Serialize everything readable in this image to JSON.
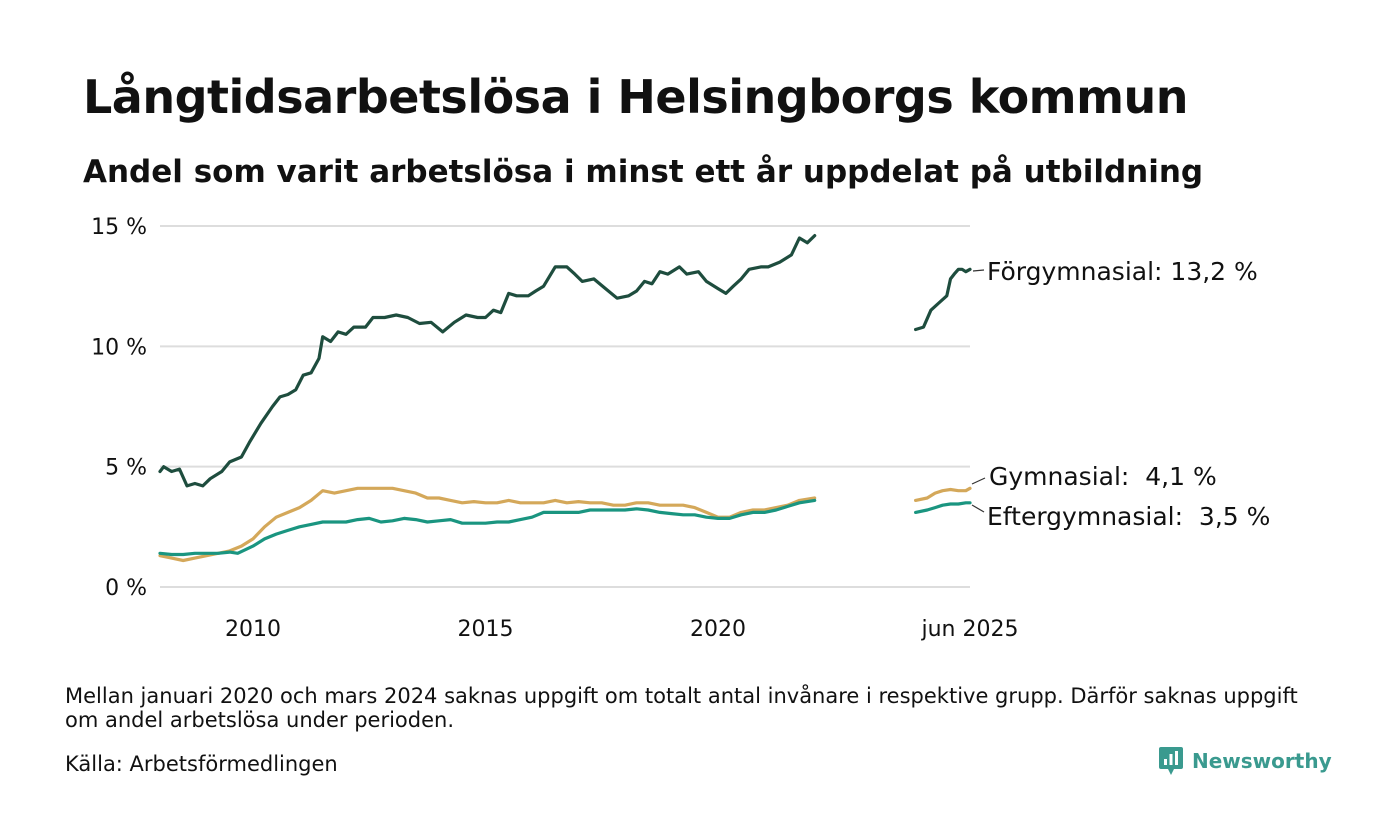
{
  "title": "Långtidsarbetslösa i Helsingborgs kommun",
  "subtitle": "Andel som varit arbetslösa i minst ett år uppdelat på utbildning",
  "footnote": "Mellan januari 2020 och mars 2024 saknas uppgift om totalt antal invånare i respektive grupp. Därför saknas uppgift om andel arbetslösa under perioden.",
  "source": "Källa: Arbetsförmedlingen",
  "brand": "Newsworthy",
  "brand_icon": "newsworthy-logo-icon",
  "colors": {
    "forgymnasial": "#1e4d3e",
    "gymnasial": "#d4a85a",
    "eftergymnasial": "#1a9580",
    "grid": "#dddddd",
    "brand": "#3a9a8f"
  },
  "chart_data": {
    "type": "line",
    "title": "Långtidsarbetslösa i Helsingborgs kommun",
    "subtitle": "Andel som varit arbetslösa i minst ett år uppdelat på utbildning",
    "y_unit": "%",
    "ylim": [
      0,
      15
    ],
    "y_ticks": [
      0,
      5,
      10,
      15
    ],
    "y_tick_labels": [
      "0 %",
      "5 %",
      "10 %",
      "15 %"
    ],
    "x_ticks": [
      2010,
      2015,
      2020,
      2025.42
    ],
    "x_tick_labels": [
      "2010",
      "2015",
      "2020",
      "jun 2025"
    ],
    "grid": true,
    "legend": "end-of-line labels, right",
    "series": [
      {
        "name": "Förgymnasial",
        "label": "Förgymnasial: 13,2 %",
        "color": "#1e4d3e",
        "segments": [
          [
            [
              2008.0,
              4.8
            ],
            [
              2008.08,
              5.0
            ],
            [
              2008.25,
              4.8
            ],
            [
              2008.42,
              4.9
            ],
            [
              2008.58,
              4.2
            ],
            [
              2008.75,
              4.3
            ],
            [
              2008.92,
              4.2
            ],
            [
              2009.08,
              4.5
            ],
            [
              2009.33,
              4.8
            ],
            [
              2009.5,
              5.2
            ],
            [
              2009.75,
              5.4
            ],
            [
              2009.92,
              6.0
            ],
            [
              2010.17,
              6.8
            ],
            [
              2010.42,
              7.5
            ],
            [
              2010.58,
              7.9
            ],
            [
              2010.75,
              8.0
            ],
            [
              2010.92,
              8.2
            ],
            [
              2011.08,
              8.8
            ],
            [
              2011.25,
              8.9
            ],
            [
              2011.42,
              9.5
            ],
            [
              2011.5,
              10.4
            ],
            [
              2011.67,
              10.2
            ],
            [
              2011.83,
              10.6
            ],
            [
              2012.0,
              10.5
            ],
            [
              2012.17,
              10.8
            ],
            [
              2012.42,
              10.8
            ],
            [
              2012.58,
              11.2
            ],
            [
              2012.83,
              11.2
            ],
            [
              2013.08,
              11.3
            ],
            [
              2013.33,
              11.2
            ],
            [
              2013.58,
              10.95
            ],
            [
              2013.83,
              11.0
            ],
            [
              2014.08,
              10.6
            ],
            [
              2014.33,
              11.0
            ],
            [
              2014.58,
              11.3
            ],
            [
              2014.83,
              11.2
            ],
            [
              2015.0,
              11.2
            ],
            [
              2015.17,
              11.5
            ],
            [
              2015.33,
              11.4
            ],
            [
              2015.5,
              12.2
            ],
            [
              2015.67,
              12.1
            ],
            [
              2015.92,
              12.1
            ],
            [
              2016.08,
              12.3
            ],
            [
              2016.25,
              12.5
            ],
            [
              2016.5,
              13.3
            ],
            [
              2016.75,
              13.3
            ],
            [
              2016.92,
              13.0
            ],
            [
              2017.08,
              12.7
            ],
            [
              2017.33,
              12.8
            ],
            [
              2017.58,
              12.4
            ],
            [
              2017.83,
              12.0
            ],
            [
              2018.08,
              12.1
            ],
            [
              2018.25,
              12.3
            ],
            [
              2018.42,
              12.7
            ],
            [
              2018.58,
              12.6
            ],
            [
              2018.75,
              13.1
            ],
            [
              2018.92,
              13.0
            ],
            [
              2019.17,
              13.3
            ],
            [
              2019.33,
              13.0
            ],
            [
              2019.58,
              13.1
            ],
            [
              2019.75,
              12.7
            ],
            [
              2020.0,
              12.4
            ],
            [
              2020.17,
              12.2
            ],
            [
              2020.33,
              12.5
            ],
            [
              2020.5,
              12.8
            ],
            [
              2020.67,
              13.2
            ],
            [
              2020.92,
              13.3
            ],
            [
              2021.08,
              13.3
            ],
            [
              2021.33,
              13.5
            ],
            [
              2021.58,
              13.8
            ],
            [
              2021.75,
              14.5
            ],
            [
              2021.92,
              14.3
            ],
            [
              2022.08,
              14.6
            ]
          ],
          [
            [
              2024.25,
              10.7
            ],
            [
              2024.42,
              10.8
            ],
            [
              2024.58,
              11.5
            ],
            [
              2024.75,
              11.8
            ],
            [
              2024.92,
              12.1
            ],
            [
              2025.0,
              12.8
            ],
            [
              2025.08,
              13.0
            ],
            [
              2025.17,
              13.2
            ],
            [
              2025.25,
              13.2
            ],
            [
              2025.33,
              13.1
            ],
            [
              2025.42,
              13.2
            ]
          ]
        ]
      },
      {
        "name": "Gymnasial",
        "label": "Gymnasial:  4,1 %",
        "color": "#d4a85a",
        "segments": [
          [
            [
              2008.0,
              1.3
            ],
            [
              2008.25,
              1.2
            ],
            [
              2008.5,
              1.1
            ],
            [
              2008.75,
              1.2
            ],
            [
              2009.0,
              1.3
            ],
            [
              2009.25,
              1.4
            ],
            [
              2009.5,
              1.5
            ],
            [
              2009.75,
              1.7
            ],
            [
              2010.0,
              2.0
            ],
            [
              2010.25,
              2.5
            ],
            [
              2010.5,
              2.9
            ],
            [
              2010.75,
              3.1
            ],
            [
              2011.0,
              3.3
            ],
            [
              2011.25,
              3.6
            ],
            [
              2011.5,
              4.0
            ],
            [
              2011.75,
              3.9
            ],
            [
              2012.0,
              4.0
            ],
            [
              2012.25,
              4.1
            ],
            [
              2012.5,
              4.1
            ],
            [
              2012.75,
              4.1
            ],
            [
              2013.0,
              4.1
            ],
            [
              2013.25,
              4.0
            ],
            [
              2013.5,
              3.9
            ],
            [
              2013.75,
              3.7
            ],
            [
              2014.0,
              3.7
            ],
            [
              2014.25,
              3.6
            ],
            [
              2014.5,
              3.5
            ],
            [
              2014.75,
              3.55
            ],
            [
              2015.0,
              3.5
            ],
            [
              2015.25,
              3.5
            ],
            [
              2015.5,
              3.6
            ],
            [
              2015.75,
              3.5
            ],
            [
              2016.0,
              3.5
            ],
            [
              2016.25,
              3.5
            ],
            [
              2016.5,
              3.6
            ],
            [
              2016.75,
              3.5
            ],
            [
              2017.0,
              3.55
            ],
            [
              2017.25,
              3.5
            ],
            [
              2017.5,
              3.5
            ],
            [
              2017.75,
              3.4
            ],
            [
              2018.0,
              3.4
            ],
            [
              2018.25,
              3.5
            ],
            [
              2018.5,
              3.5
            ],
            [
              2018.75,
              3.4
            ],
            [
              2019.0,
              3.4
            ],
            [
              2019.25,
              3.4
            ],
            [
              2019.5,
              3.3
            ],
            [
              2019.75,
              3.1
            ],
            [
              2020.0,
              2.9
            ],
            [
              2020.25,
              2.9
            ],
            [
              2020.5,
              3.1
            ],
            [
              2020.75,
              3.2
            ],
            [
              2021.0,
              3.2
            ],
            [
              2021.25,
              3.3
            ],
            [
              2021.5,
              3.4
            ],
            [
              2021.75,
              3.6
            ],
            [
              2022.08,
              3.7
            ]
          ],
          [
            [
              2024.25,
              3.6
            ],
            [
              2024.5,
              3.7
            ],
            [
              2024.67,
              3.9
            ],
            [
              2024.83,
              4.0
            ],
            [
              2025.0,
              4.05
            ],
            [
              2025.17,
              4.0
            ],
            [
              2025.33,
              4.0
            ],
            [
              2025.42,
              4.1
            ]
          ]
        ]
      },
      {
        "name": "Eftergymnasial",
        "label": "Eftergymnasial:  3,5 %",
        "color": "#1a9580",
        "segments": [
          [
            [
              2008.0,
              1.4
            ],
            [
              2008.25,
              1.35
            ],
            [
              2008.5,
              1.35
            ],
            [
              2008.75,
              1.4
            ],
            [
              2009.0,
              1.4
            ],
            [
              2009.25,
              1.4
            ],
            [
              2009.5,
              1.45
            ],
            [
              2009.67,
              1.4
            ],
            [
              2010.0,
              1.7
            ],
            [
              2010.25,
              2.0
            ],
            [
              2010.5,
              2.2
            ],
            [
              2010.75,
              2.35
            ],
            [
              2011.0,
              2.5
            ],
            [
              2011.25,
              2.6
            ],
            [
              2011.5,
              2.7
            ],
            [
              2011.75,
              2.7
            ],
            [
              2012.0,
              2.7
            ],
            [
              2012.25,
              2.8
            ],
            [
              2012.5,
              2.85
            ],
            [
              2012.75,
              2.7
            ],
            [
              2013.0,
              2.75
            ],
            [
              2013.25,
              2.85
            ],
            [
              2013.5,
              2.8
            ],
            [
              2013.75,
              2.7
            ],
            [
              2014.0,
              2.75
            ],
            [
              2014.25,
              2.8
            ],
            [
              2014.5,
              2.65
            ],
            [
              2014.75,
              2.65
            ],
            [
              2015.0,
              2.65
            ],
            [
              2015.25,
              2.7
            ],
            [
              2015.5,
              2.7
            ],
            [
              2015.75,
              2.8
            ],
            [
              2016.0,
              2.9
            ],
            [
              2016.25,
              3.1
            ],
            [
              2016.5,
              3.1
            ],
            [
              2016.75,
              3.1
            ],
            [
              2017.0,
              3.1
            ],
            [
              2017.25,
              3.2
            ],
            [
              2017.5,
              3.2
            ],
            [
              2017.75,
              3.2
            ],
            [
              2018.0,
              3.2
            ],
            [
              2018.25,
              3.25
            ],
            [
              2018.5,
              3.2
            ],
            [
              2018.75,
              3.1
            ],
            [
              2019.0,
              3.05
            ],
            [
              2019.25,
              3.0
            ],
            [
              2019.5,
              3.0
            ],
            [
              2019.75,
              2.9
            ],
            [
              2020.0,
              2.85
            ],
            [
              2020.25,
              2.85
            ],
            [
              2020.5,
              3.0
            ],
            [
              2020.75,
              3.1
            ],
            [
              2021.0,
              3.1
            ],
            [
              2021.25,
              3.2
            ],
            [
              2021.5,
              3.35
            ],
            [
              2021.75,
              3.5
            ],
            [
              2022.08,
              3.6
            ]
          ],
          [
            [
              2024.25,
              3.1
            ],
            [
              2024.5,
              3.2
            ],
            [
              2024.67,
              3.3
            ],
            [
              2024.83,
              3.4
            ],
            [
              2025.0,
              3.45
            ],
            [
              2025.17,
              3.45
            ],
            [
              2025.33,
              3.5
            ],
            [
              2025.42,
              3.5
            ]
          ]
        ]
      }
    ]
  }
}
